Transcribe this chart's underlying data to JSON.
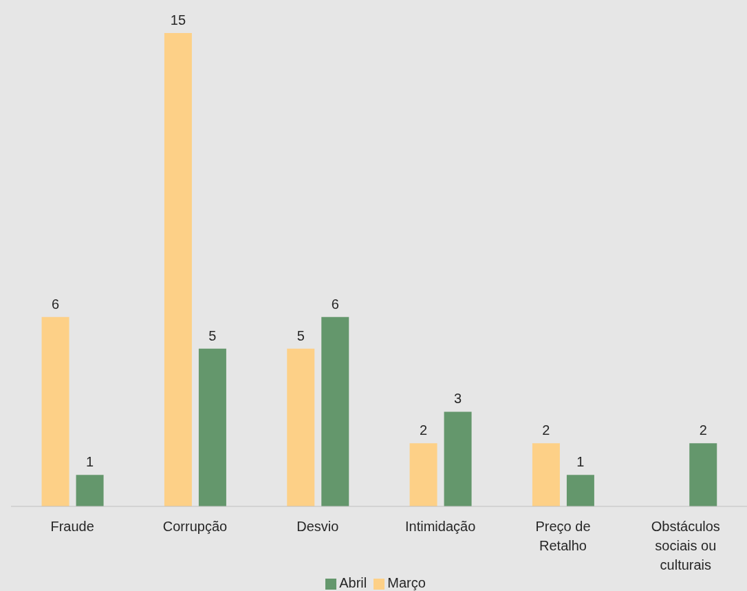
{
  "chart_data": {
    "type": "bar",
    "categories": [
      "Fraude",
      "Corrupção",
      "Desvio",
      "Intimidação",
      "Preço de Retalho",
      "Obstáculos sociais ou culturais"
    ],
    "series": [
      {
        "name": "Março",
        "color": "#fdd087",
        "values": [
          6,
          15,
          5,
          2,
          2,
          null
        ]
      },
      {
        "name": "Abril",
        "color": "#64976c",
        "values": [
          1,
          5,
          6,
          3,
          1,
          2
        ]
      }
    ],
    "data_labels": true,
    "grid": false,
    "legend": "bottom"
  }
}
